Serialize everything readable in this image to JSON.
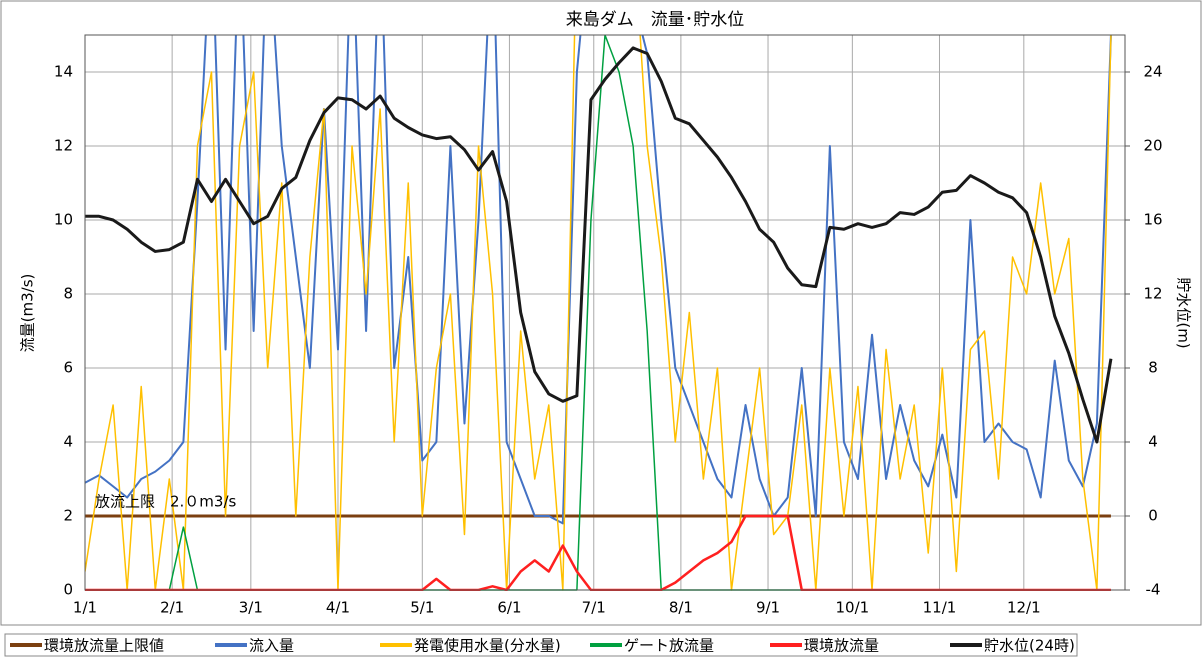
{
  "chart_data": {
    "type": "line",
    "title": "来島ダム　流量･貯水位",
    "ylabel": "流量(m3/s)",
    "y2label": "貯水位(m)",
    "annotation": "放流上限　2.０m3/s",
    "x": [
      0,
      5,
      10,
      15,
      20,
      25,
      30,
      35,
      40,
      45,
      50,
      55,
      60,
      65,
      70,
      75,
      80,
      85,
      90,
      95,
      100,
      105,
      110,
      115,
      120,
      125,
      130,
      135,
      140,
      145,
      150,
      155,
      160,
      165,
      170,
      175,
      180,
      185,
      190,
      195,
      200,
      205,
      210,
      215,
      220,
      225,
      230,
      235,
      240,
      245,
      250,
      255,
      260,
      265,
      270,
      275,
      280,
      285,
      290,
      295,
      300,
      305,
      310,
      315,
      320,
      325,
      330,
      335,
      340,
      345,
      350,
      355,
      360,
      365
    ],
    "xlim": [
      0,
      370
    ],
    "xticks": [
      {
        "value": 0,
        "label": "1/1"
      },
      {
        "value": 31,
        "label": "2/1"
      },
      {
        "value": 59,
        "label": "3/1"
      },
      {
        "value": 90,
        "label": "4/1"
      },
      {
        "value": 120,
        "label": "5/1"
      },
      {
        "value": 151,
        "label": "6/1"
      },
      {
        "value": 181,
        "label": "7/1"
      },
      {
        "value": 212,
        "label": "8/1"
      },
      {
        "value": 243,
        "label": "9/1"
      },
      {
        "value": 273,
        "label": "10/1"
      },
      {
        "value": 304,
        "label": "11/1"
      },
      {
        "value": 334,
        "label": "12/1"
      }
    ],
    "ylim": [
      0,
      15
    ],
    "yticks": [
      0,
      2,
      4,
      6,
      8,
      10,
      12,
      14
    ],
    "y2lim": [
      -4,
      26
    ],
    "y2ticks": [
      -4,
      0,
      4,
      8,
      12,
      16,
      20,
      24
    ],
    "grid": true,
    "series": [
      {
        "name": "環境放流量上限値",
        "color": "#7b3f10",
        "width": 3,
        "values": [
          2,
          2,
          2,
          2,
          2,
          2,
          2,
          2,
          2,
          2,
          2,
          2,
          2,
          2,
          2,
          2,
          2,
          2,
          2,
          2,
          2,
          2,
          2,
          2,
          2,
          2,
          2,
          2,
          2,
          2,
          2,
          2,
          2,
          2,
          2,
          2,
          2,
          2,
          2,
          2,
          2,
          2,
          2,
          2,
          2,
          2,
          2,
          2,
          2,
          2,
          2,
          2,
          2,
          2,
          2,
          2,
          2,
          2,
          2,
          2,
          2,
          2,
          2,
          2,
          2,
          2,
          2,
          2,
          2,
          2,
          2,
          2,
          2,
          2
        ]
      },
      {
        "name": "流入量",
        "color": "#4472c4",
        "width": 2,
        "values": [
          2.9,
          3.1,
          2.8,
          2.5,
          3,
          3.2,
          3.5,
          4,
          10.5,
          18,
          6.5,
          18,
          7,
          18,
          12,
          9,
          6,
          13,
          6.5,
          18,
          7,
          18,
          6,
          9,
          3.5,
          4,
          12,
          4.5,
          10,
          18,
          4,
          3,
          2,
          2,
          1.8,
          14,
          18,
          18,
          17,
          16,
          14.5,
          10,
          6,
          5,
          4,
          3,
          2.5,
          5,
          3,
          2,
          2.5,
          6,
          2,
          12,
          4,
          3,
          6.9,
          3,
          5,
          3.5,
          2.8,
          4.2,
          2.5,
          10,
          4,
          4.5,
          4,
          3.8,
          2.5,
          6.2,
          3.5,
          2.8,
          4.5,
          15
        ]
      },
      {
        "name": "発電使用水量(分水量)",
        "color": "#ffc000",
        "width": 1.5,
        "values": [
          0.5,
          3,
          5,
          0,
          5.5,
          0,
          3,
          0,
          12,
          14,
          2,
          12,
          14,
          6,
          11,
          2,
          9,
          13,
          0,
          12,
          8,
          13,
          4,
          11,
          2,
          6,
          8,
          1.5,
          12,
          8,
          0,
          7,
          3,
          5,
          0,
          18,
          18,
          18,
          18,
          18,
          12,
          9,
          4,
          7.5,
          3,
          6,
          0,
          3,
          6,
          1.5,
          2,
          5,
          0,
          6,
          2,
          5.5,
          0,
          6.5,
          3,
          5,
          1,
          6,
          0.5,
          6.5,
          7,
          3,
          9,
          8,
          11,
          8,
          9.5,
          3,
          0,
          15
        ]
      },
      {
        "name": "ゲート放流量",
        "color": "#00a040",
        "width": 1.5,
        "values": [
          0,
          0,
          0,
          0,
          0,
          0,
          0,
          1.7,
          0,
          0,
          0,
          0,
          0,
          0,
          0,
          0,
          0,
          0,
          0,
          0,
          0,
          0,
          0,
          0,
          0,
          0,
          0,
          0,
          0,
          0,
          0,
          0,
          0,
          0,
          0,
          0,
          10,
          15,
          14,
          12,
          7,
          0,
          0,
          0,
          0,
          0,
          0,
          0,
          0,
          0,
          0,
          0,
          0,
          0,
          0,
          0,
          0,
          0,
          0,
          0,
          0,
          0,
          0,
          0,
          0,
          0,
          0,
          0,
          0,
          0,
          0,
          0,
          0,
          0
        ]
      },
      {
        "name": "環境放流量",
        "color": "#ff2020",
        "width": 2.5,
        "values": [
          0,
          0,
          0,
          0,
          0,
          0,
          0,
          0,
          0,
          0,
          0,
          0,
          0,
          0,
          0,
          0,
          0,
          0,
          0,
          0,
          0,
          0,
          0,
          0,
          0,
          0.3,
          0,
          0,
          0,
          0.1,
          0,
          0.5,
          0.8,
          0.5,
          1.2,
          0.5,
          0,
          0,
          0,
          0,
          0,
          0,
          0.2,
          0.5,
          0.8,
          1,
          1.3,
          2,
          2,
          2,
          2,
          0,
          0,
          0,
          0,
          0,
          0,
          0,
          0,
          0,
          0,
          0,
          0,
          0,
          0,
          0,
          0,
          0,
          0,
          0,
          0,
          0,
          0,
          0
        ]
      },
      {
        "name": "貯水位(24時)",
        "color": "#1a1a1a",
        "width": 3,
        "axis": "y2",
        "values": [
          16.2,
          16.2,
          16,
          15.5,
          14.8,
          14.3,
          14.4,
          14.8,
          18.2,
          17,
          18.2,
          17,
          15.8,
          16.2,
          17.7,
          18.3,
          20.3,
          21.8,
          22.6,
          22.5,
          22,
          22.7,
          21.5,
          21,
          20.6,
          20.4,
          20.5,
          19.8,
          18.7,
          19.7,
          17,
          11,
          7.8,
          6.6,
          6.2,
          6.5,
          22.5,
          23.6,
          24.5,
          25.3,
          25,
          23.5,
          21.5,
          21.2,
          20.3,
          19.4,
          18.3,
          17,
          15.5,
          14.8,
          13.4,
          12.5,
          12.4,
          15.6,
          15.5,
          15.8,
          15.6,
          15.8,
          16.4,
          16.3,
          16.7,
          17.5,
          17.6,
          18.4,
          18,
          17.5,
          17.2,
          16.4,
          14,
          10.8,
          8.8,
          6.3,
          4,
          8.5
        ]
      }
    ]
  }
}
